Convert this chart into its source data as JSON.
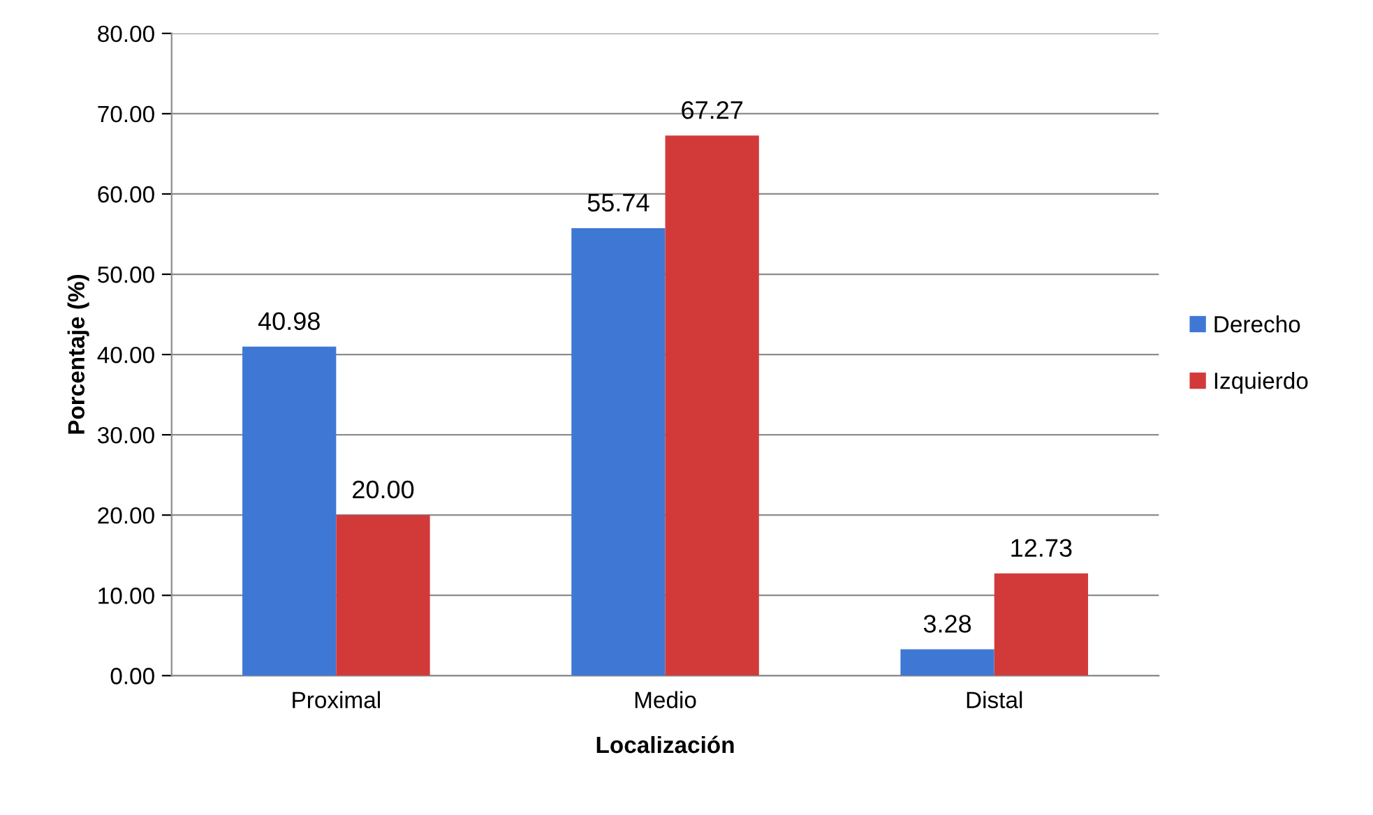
{
  "chart_data": {
    "type": "bar",
    "xlabel": "Localización",
    "ylabel": "Porcentaje (%)",
    "categories": [
      "Proximal",
      "Medio",
      "Distal"
    ],
    "series": [
      {
        "name": "Derecho",
        "color": "#3f78d4",
        "values": [
          40.98,
          55.74,
          3.28
        ],
        "value_labels": [
          "40.98",
          "55.74",
          "3.28"
        ]
      },
      {
        "name": "Izquierdo",
        "color": "#d23a3a",
        "values": [
          20.0,
          67.27,
          12.73
        ],
        "value_labels": [
          "20.00",
          "67.27",
          "12.73"
        ]
      }
    ],
    "ylim": [
      0,
      80
    ],
    "yticks": [
      {
        "value": 0,
        "label": "0.00"
      },
      {
        "value": 10,
        "label": "10.00"
      },
      {
        "value": 20,
        "label": "20.00"
      },
      {
        "value": 30,
        "label": "30.00"
      },
      {
        "value": 40,
        "label": "40.00"
      },
      {
        "value": 50,
        "label": "50.00"
      },
      {
        "value": 60,
        "label": "60.00"
      },
      {
        "value": 70,
        "label": "70.00"
      },
      {
        "value": 80,
        "label": "80.00"
      }
    ],
    "grid": "y",
    "legend": "right"
  }
}
